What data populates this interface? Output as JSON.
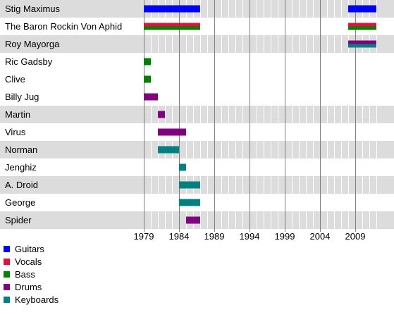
{
  "chart_data": {
    "type": "timeline",
    "x_axis": {
      "tick_labels": [
        "1979",
        "1984",
        "1989",
        "1994",
        "1999",
        "2004",
        "2009"
      ],
      "range": [
        1979,
        2012
      ],
      "minor_step": 1
    },
    "grid": true,
    "legend_position": "bottom-left",
    "legend": [
      {
        "role": "Guitars",
        "color": "#0000ff"
      },
      {
        "role": "Vocals",
        "color": "#dc143c"
      },
      {
        "role": "Bass",
        "color": "#008000"
      },
      {
        "role": "Drums",
        "color": "#800080"
      },
      {
        "role": "Keyboards",
        "color": "#008080"
      }
    ],
    "members": [
      {
        "name": "Stig Maximus",
        "periods": [
          {
            "roles": [
              "Guitars"
            ],
            "start": 1979,
            "end": 1987
          },
          {
            "roles": [
              "Guitars"
            ],
            "start": 2008,
            "end": 2012
          }
        ]
      },
      {
        "name": "The Baron Rockin Von Aphid",
        "periods": [
          {
            "roles": [
              "Vocals",
              "Bass"
            ],
            "start": 1979,
            "end": 1987
          },
          {
            "roles": [
              "Vocals",
              "Bass"
            ],
            "start": 2008,
            "end": 2012
          }
        ]
      },
      {
        "name": "Roy Mayorga",
        "periods": [
          {
            "roles": [
              "Drums",
              "Keyboards"
            ],
            "start": 2008,
            "end": 2012
          }
        ]
      },
      {
        "name": "Ric Gadsby",
        "periods": [
          {
            "roles": [
              "Bass"
            ],
            "start": 1979,
            "end": 1980
          }
        ]
      },
      {
        "name": "Clive",
        "periods": [
          {
            "roles": [
              "Bass"
            ],
            "start": 1979,
            "end": 1980
          }
        ]
      },
      {
        "name": "Billy Jug",
        "periods": [
          {
            "roles": [
              "Drums"
            ],
            "start": 1979,
            "end": 1981
          }
        ]
      },
      {
        "name": "Martin",
        "periods": [
          {
            "roles": [
              "Drums"
            ],
            "start": 1981,
            "end": 1982
          }
        ]
      },
      {
        "name": "Virus",
        "periods": [
          {
            "roles": [
              "Drums"
            ],
            "start": 1981,
            "end": 1985
          }
        ]
      },
      {
        "name": "Norman",
        "periods": [
          {
            "roles": [
              "Keyboards"
            ],
            "start": 1981,
            "end": 1984
          }
        ]
      },
      {
        "name": "Jenghiz",
        "periods": [
          {
            "roles": [
              "Keyboards"
            ],
            "start": 1984,
            "end": 1985
          }
        ]
      },
      {
        "name": "A. Droid",
        "periods": [
          {
            "roles": [
              "Keyboards"
            ],
            "start": 1984,
            "end": 1987
          }
        ]
      },
      {
        "name": "George",
        "periods": [
          {
            "roles": [
              "Keyboards"
            ],
            "start": 1984,
            "end": 1987
          }
        ]
      },
      {
        "name": "Spider",
        "periods": [
          {
            "roles": [
              "Drums"
            ],
            "start": 1985,
            "end": 1987
          }
        ]
      }
    ]
  }
}
